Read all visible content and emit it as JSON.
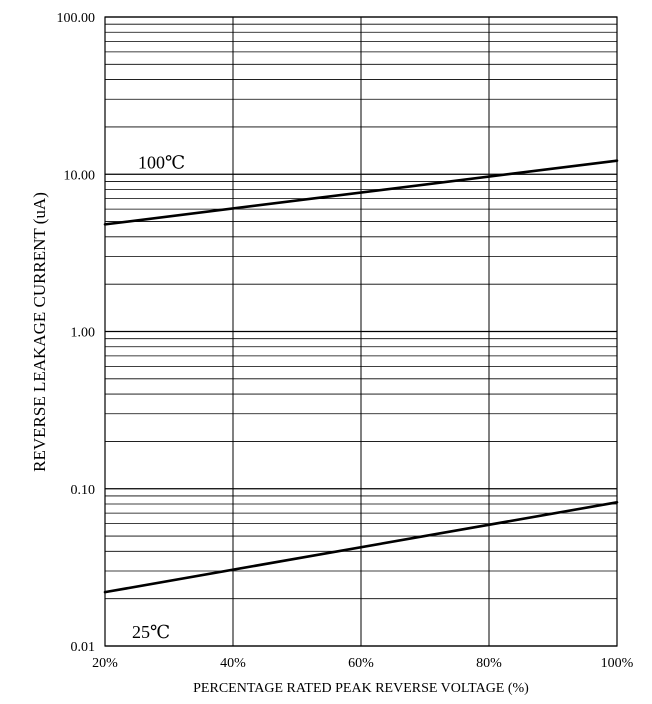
{
  "chart_data": {
    "type": "line",
    "xlabel": "PERCENTAGE RATED PEAK REVERSE VOLTAGE (%)",
    "ylabel": "REVERSE LEAKAGE CURRENT (uA)",
    "x_scale": "linear",
    "y_scale": "log",
    "xlim": [
      20,
      100
    ],
    "ylim": [
      0.01,
      100
    ],
    "x_ticks": [
      {
        "value": 20,
        "label": "20%"
      },
      {
        "value": 40,
        "label": "40%"
      },
      {
        "value": 60,
        "label": "60%"
      },
      {
        "value": 80,
        "label": "80%"
      },
      {
        "value": 100,
        "label": "100%"
      }
    ],
    "y_ticks": [
      {
        "value": 0.01,
        "label": "0.01"
      },
      {
        "value": 0.1,
        "label": "0.10"
      },
      {
        "value": 1,
        "label": "1.00"
      },
      {
        "value": 10,
        "label": "10.00"
      },
      {
        "value": 100,
        "label": "100.00"
      }
    ],
    "grid": true,
    "series": [
      {
        "name": "100℃",
        "color": "#000000",
        "x": [
          20,
          100
        ],
        "y": [
          4.8,
          12.2
        ]
      },
      {
        "name": "25℃",
        "color": "#000000",
        "x": [
          20,
          100
        ],
        "y": [
          0.022,
          0.082
        ]
      }
    ]
  }
}
